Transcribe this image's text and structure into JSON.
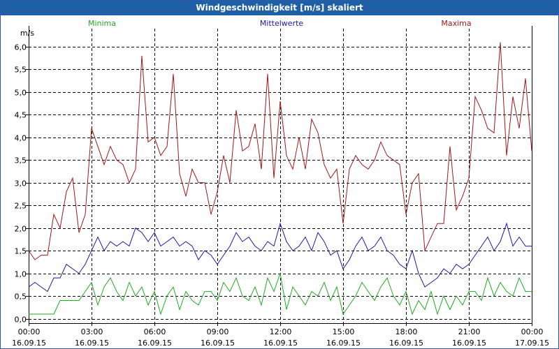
{
  "window": {
    "title": "Windgeschwindigkeit [m/s] skaliert"
  },
  "chart_data": {
    "type": "line",
    "title": "Windgeschwindigkeit [m/s] skaliert",
    "ylabel": "m/s",
    "ylim": [
      -0.1,
      6.4
    ],
    "yticks": [
      0.0,
      0.5,
      1.0,
      1.5,
      2.0,
      2.5,
      3.0,
      3.5,
      4.0,
      4.5,
      5.0,
      5.5,
      6.0
    ],
    "ytick_labels": [
      "0,0",
      "0,5",
      "1,0",
      "1,5",
      "2,0",
      "2,5",
      "3,0",
      "3,5",
      "4,0",
      "4,5",
      "5,0",
      "5,5",
      "6,0"
    ],
    "xlim": [
      0,
      24
    ],
    "xticks": [
      {
        "hour": 0,
        "time": "00:00",
        "date": "16.09.15"
      },
      {
        "hour": 3,
        "time": "03:00",
        "date": "16.09.15"
      },
      {
        "hour": 6,
        "time": "06:00",
        "date": "16.09.15"
      },
      {
        "hour": 9,
        "time": "09:00",
        "date": "16.09.15"
      },
      {
        "hour": 12,
        "time": "12:00",
        "date": "16.09.15"
      },
      {
        "hour": 15,
        "time": "15:00",
        "date": "16.09.15"
      },
      {
        "hour": 18,
        "time": "18:00",
        "date": "16.09.15"
      },
      {
        "hour": 21,
        "time": "21:00",
        "date": "16.09.15"
      },
      {
        "hour": 24,
        "time": "00:00",
        "date": "17.09.15"
      }
    ],
    "grid": true,
    "legend_position": "top",
    "series": [
      {
        "name": "Minima",
        "color": "#22aa22",
        "x": [
          0,
          0.6,
          1.2,
          1.5,
          2.0,
          2.4,
          2.7,
          3.0,
          3.3,
          3.6,
          3.9,
          4.2,
          4.5,
          4.8,
          5.1,
          5.4,
          5.7,
          6.0,
          6.3,
          6.6,
          6.9,
          7.2,
          7.5,
          7.8,
          8.1,
          8.4,
          8.7,
          9.0,
          9.3,
          9.6,
          9.9,
          10.2,
          10.5,
          10.8,
          11.1,
          11.4,
          11.7,
          12.0,
          12.3,
          12.6,
          12.9,
          13.2,
          13.5,
          13.8,
          14.1,
          14.4,
          14.7,
          15.0,
          15.3,
          15.6,
          15.9,
          16.2,
          16.5,
          16.8,
          17.1,
          17.4,
          17.7,
          18.0,
          18.3,
          18.6,
          18.9,
          19.2,
          19.5,
          19.8,
          20.1,
          20.4,
          20.7,
          21.0,
          21.3,
          21.6,
          21.9,
          22.2,
          22.5,
          22.8,
          23.1,
          23.4,
          23.7,
          24.0
        ],
        "values": [
          0.1,
          0.1,
          0.1,
          0.4,
          0.4,
          0.4,
          0.6,
          0.8,
          0.3,
          0.7,
          0.9,
          0.6,
          0.4,
          0.8,
          0.5,
          0.7,
          0.3,
          0.6,
          0.1,
          0.5,
          0.7,
          0.2,
          0.6,
          0.4,
          0.3,
          0.6,
          0.6,
          0.4,
          0.8,
          0.6,
          0.9,
          0.5,
          0.4,
          0.7,
          0.3,
          0.9,
          0.6,
          1.0,
          0.2,
          0.7,
          0.5,
          0.3,
          0.6,
          0.5,
          0.8,
          0.4,
          0.7,
          0.1,
          0.3,
          0.5,
          0.8,
          0.6,
          0.4,
          0.7,
          0.9,
          0.5,
          0.3,
          0.6,
          0.1,
          0.4,
          0.2,
          0.6,
          0.1,
          0.5,
          0.2,
          0.5,
          0.3,
          0.6,
          0.6,
          0.4,
          0.9,
          0.5,
          0.8,
          0.6,
          0.5,
          0.9,
          0.6,
          0.6
        ]
      },
      {
        "name": "Mittelwerte",
        "color": "#1a1aa6",
        "x": [
          0,
          0.3,
          0.6,
          0.9,
          1.2,
          1.5,
          1.8,
          2.1,
          2.4,
          2.7,
          3.0,
          3.3,
          3.6,
          3.9,
          4.2,
          4.5,
          4.8,
          5.1,
          5.4,
          5.7,
          6.0,
          6.3,
          6.6,
          6.9,
          7.2,
          7.5,
          7.8,
          8.1,
          8.4,
          8.7,
          9.0,
          9.3,
          9.6,
          9.9,
          10.2,
          10.5,
          10.8,
          11.1,
          11.4,
          11.7,
          12.0,
          12.3,
          12.6,
          12.9,
          13.2,
          13.5,
          13.8,
          14.1,
          14.4,
          14.7,
          15.0,
          15.3,
          15.6,
          15.9,
          16.2,
          16.5,
          16.8,
          17.1,
          17.4,
          17.7,
          18.0,
          18.3,
          18.6,
          18.9,
          19.2,
          19.5,
          19.8,
          20.1,
          20.4,
          20.7,
          21.0,
          21.3,
          21.6,
          21.9,
          22.2,
          22.5,
          22.8,
          23.1,
          23.4,
          23.7,
          24.0
        ],
        "values": [
          0.7,
          0.8,
          0.7,
          0.6,
          0.9,
          0.9,
          1.2,
          1.1,
          1.0,
          1.2,
          1.5,
          1.8,
          1.5,
          1.7,
          1.6,
          1.7,
          1.6,
          2.0,
          1.9,
          1.7,
          1.9,
          1.6,
          1.7,
          1.8,
          1.6,
          1.7,
          1.6,
          1.3,
          1.5,
          1.4,
          1.2,
          1.4,
          1.6,
          1.9,
          1.7,
          1.8,
          1.6,
          1.5,
          1.7,
          1.6,
          2.1,
          1.7,
          1.5,
          1.6,
          1.8,
          1.5,
          1.9,
          1.7,
          1.4,
          1.5,
          1.1,
          1.3,
          1.6,
          1.8,
          1.5,
          1.6,
          1.8,
          1.5,
          1.4,
          1.2,
          1.1,
          1.5,
          1.0,
          0.7,
          0.8,
          0.9,
          1.1,
          1.0,
          1.2,
          1.1,
          1.2,
          1.4,
          1.6,
          1.8,
          1.5,
          1.7,
          2.1,
          1.6,
          1.8,
          1.6,
          1.6
        ]
      },
      {
        "name": "Maxima",
        "color": "#a01818",
        "x": [
          0,
          0.3,
          0.6,
          0.9,
          1.2,
          1.5,
          1.8,
          2.1,
          2.4,
          2.7,
          3.0,
          3.3,
          3.6,
          3.9,
          4.2,
          4.5,
          4.8,
          5.1,
          5.4,
          5.7,
          6.0,
          6.3,
          6.6,
          6.9,
          7.2,
          7.5,
          7.8,
          8.1,
          8.4,
          8.7,
          9.0,
          9.3,
          9.6,
          9.9,
          10.2,
          10.5,
          10.8,
          11.1,
          11.4,
          11.7,
          12.0,
          12.3,
          12.6,
          12.9,
          13.2,
          13.5,
          13.8,
          14.1,
          14.4,
          14.7,
          15.0,
          15.3,
          15.6,
          15.9,
          16.2,
          16.5,
          16.8,
          17.1,
          17.4,
          17.7,
          18.0,
          18.3,
          18.6,
          18.9,
          19.2,
          19.5,
          19.8,
          20.1,
          20.4,
          20.7,
          21.0,
          21.3,
          21.6,
          21.9,
          22.2,
          22.5,
          22.8,
          23.1,
          23.4,
          23.7,
          24.0
        ],
        "values": [
          1.5,
          1.3,
          1.4,
          1.4,
          2.3,
          2.0,
          2.8,
          3.1,
          1.9,
          2.3,
          4.2,
          3.8,
          3.4,
          3.8,
          3.5,
          3.4,
          3.0,
          3.3,
          5.8,
          3.9,
          4.0,
          3.6,
          3.8,
          5.4,
          3.2,
          2.7,
          3.3,
          3.0,
          3.0,
          2.3,
          2.8,
          3.6,
          3.0,
          4.6,
          3.7,
          3.8,
          4.3,
          3.3,
          5.4,
          3.1,
          4.8,
          3.6,
          3.3,
          4.0,
          3.3,
          4.4,
          4.1,
          3.4,
          3.1,
          3.3,
          2.1,
          3.3,
          3.6,
          3.4,
          3.3,
          3.5,
          3.9,
          3.6,
          3.5,
          3.4,
          2.3,
          3.0,
          3.2,
          1.5,
          1.8,
          2.1,
          2.1,
          3.8,
          2.4,
          2.7,
          3.1,
          4.9,
          4.6,
          4.2,
          4.1,
          6.1,
          3.6,
          4.9,
          4.2,
          5.3,
          3.7
        ]
      }
    ]
  }
}
